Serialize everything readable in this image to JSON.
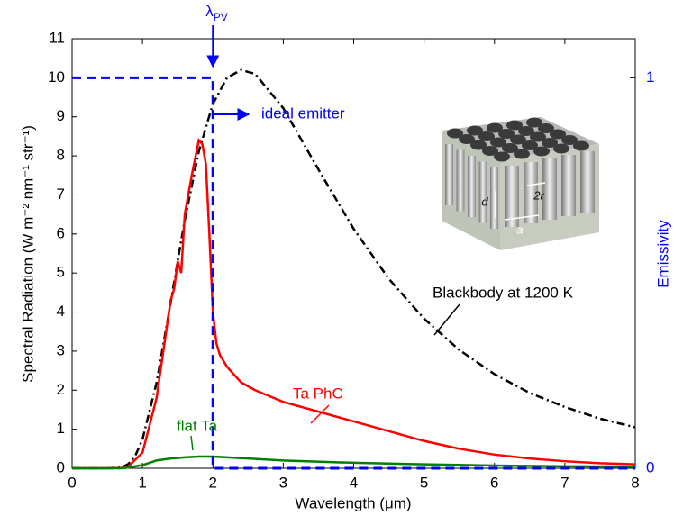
{
  "chart_data": {
    "type": "line",
    "xlabel": "Wavelength (μm)",
    "ylabel": "Spectral Radiation (W m⁻² nm⁻¹ str⁻¹)",
    "y2label": "Emissivity",
    "xlim": [
      0,
      8
    ],
    "xticks": [
      0,
      1,
      2,
      3,
      4,
      5,
      6,
      7,
      8
    ],
    "ylim": [
      0,
      11
    ],
    "yticks": [
      0,
      1,
      2,
      3,
      4,
      5,
      6,
      7,
      8,
      9,
      10,
      11
    ],
    "y2lim": [
      0,
      1.1
    ],
    "y2ticks": [
      0,
      1
    ],
    "lambda_symbol": "λ",
    "lambda_subscript": "PV",
    "inset_labels": [
      "d",
      "2r",
      "a"
    ],
    "series": [
      {
        "name": "Blackbody at 1200 K",
        "color": "#000000",
        "dash": "dashdot",
        "x": [
          0,
          0.5,
          0.7,
          0.8,
          0.9,
          1,
          1.2,
          1.4,
          1.5,
          1.6,
          1.8,
          2,
          2.2,
          2.4,
          2.6,
          3,
          3.5,
          4,
          4.5,
          5,
          5.5,
          6,
          6.5,
          7,
          7.5,
          8
        ],
        "values": [
          0,
          0,
          0.02,
          0.11,
          0.33,
          0.74,
          2.19,
          4.24,
          5.31,
          6.35,
          8.11,
          9.33,
          10.0,
          10.2,
          10.1,
          9.22,
          7.65,
          6.13,
          4.85,
          3.83,
          3.03,
          2.41,
          1.93,
          1.57,
          1.27,
          1.05
        ]
      },
      {
        "name": "Ta PhC",
        "color": "#ff0000",
        "dash": "solid",
        "x": [
          0,
          0.5,
          0.7,
          0.8,
          1,
          1.2,
          1.4,
          1.45,
          1.5,
          1.55,
          1.6,
          1.7,
          1.8,
          1.85,
          1.9,
          1.95,
          2,
          2.05,
          2.1,
          2.2,
          2.4,
          2.6,
          3,
          3.5,
          4,
          4.5,
          5,
          5.5,
          6,
          6.5,
          7,
          7.5,
          8
        ],
        "values": [
          0,
          0,
          0.01,
          0.05,
          0.4,
          1.8,
          4.3,
          4.6,
          5.3,
          5.0,
          6.5,
          7.5,
          8.4,
          8.3,
          7.8,
          6.0,
          4.0,
          3.2,
          2.9,
          2.6,
          2.2,
          2.0,
          1.7,
          1.45,
          1.2,
          0.95,
          0.7,
          0.5,
          0.35,
          0.25,
          0.18,
          0.13,
          0.1
        ]
      },
      {
        "name": "flat Ta",
        "color": "#008000",
        "dash": "solid",
        "x": [
          0,
          0.5,
          0.7,
          0.8,
          1,
          1.2,
          1.4,
          1.6,
          1.8,
          2,
          2.5,
          3,
          4,
          5,
          6,
          7,
          8
        ],
        "values": [
          0,
          0,
          0,
          0.02,
          0.08,
          0.2,
          0.25,
          0.28,
          0.3,
          0.3,
          0.25,
          0.2,
          0.14,
          0.1,
          0.07,
          0.05,
          0.04
        ]
      },
      {
        "name": "ideal emitter",
        "color": "#0000ff",
        "dash": "dashed",
        "axis": "y2",
        "x": [
          0,
          2,
          2,
          8
        ],
        "values": [
          1,
          1,
          0,
          0
        ]
      }
    ]
  }
}
